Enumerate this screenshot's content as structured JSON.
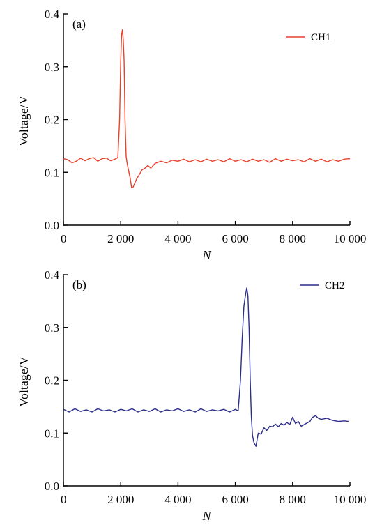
{
  "chart_data": [
    {
      "panel_label": "(a)",
      "type": "line",
      "xlabel": "N",
      "ylabel": "Voltage/V",
      "xlim": [
        0,
        10000
      ],
      "ylim": [
        0.0,
        0.4
      ],
      "xticks": [
        0,
        2000,
        4000,
        6000,
        8000,
        10000
      ],
      "xtick_labels": [
        "0",
        "2 000",
        "4 000",
        "6 000",
        "8 000",
        "10 000"
      ],
      "yticks": [
        0.0,
        0.1,
        0.2,
        0.3,
        0.4
      ],
      "ytick_labels": [
        "0.0",
        "0.1",
        "0.2",
        "0.3",
        "0.4"
      ],
      "legend_position": "top-right",
      "series": [
        {
          "name": "CH1",
          "color": "#e8412c",
          "x": [
            0,
            150,
            300,
            450,
            600,
            750,
            900,
            1050,
            1200,
            1350,
            1500,
            1650,
            1800,
            1900,
            1960,
            2000,
            2030,
            2060,
            2090,
            2120,
            2150,
            2190,
            2230,
            2280,
            2330,
            2380,
            2430,
            2480,
            2550,
            2650,
            2750,
            2850,
            2950,
            3050,
            3200,
            3400,
            3600,
            3800,
            4000,
            4200,
            4400,
            4600,
            4800,
            5000,
            5200,
            5400,
            5600,
            5800,
            6000,
            6200,
            6400,
            6600,
            6800,
            7000,
            7200,
            7400,
            7600,
            7800,
            8000,
            8200,
            8400,
            8600,
            8800,
            9000,
            9200,
            9400,
            9600,
            9800,
            10000
          ],
          "values": [
            0.126,
            0.124,
            0.118,
            0.121,
            0.127,
            0.122,
            0.126,
            0.128,
            0.121,
            0.126,
            0.127,
            0.122,
            0.125,
            0.128,
            0.2,
            0.31,
            0.36,
            0.37,
            0.35,
            0.31,
            0.2,
            0.13,
            0.115,
            0.102,
            0.089,
            0.071,
            0.072,
            0.078,
            0.087,
            0.096,
            0.105,
            0.108,
            0.113,
            0.108,
            0.117,
            0.121,
            0.118,
            0.123,
            0.121,
            0.125,
            0.12,
            0.124,
            0.12,
            0.125,
            0.121,
            0.124,
            0.12,
            0.126,
            0.121,
            0.124,
            0.12,
            0.125,
            0.121,
            0.124,
            0.119,
            0.126,
            0.121,
            0.125,
            0.122,
            0.124,
            0.12,
            0.126,
            0.121,
            0.125,
            0.12,
            0.124,
            0.121,
            0.125,
            0.126
          ]
        }
      ]
    },
    {
      "panel_label": "(b)",
      "type": "line",
      "xlabel": "N",
      "ylabel": "Voltage/V",
      "xlim": [
        0,
        10000
      ],
      "ylim": [
        0.0,
        0.4
      ],
      "xticks": [
        0,
        2000,
        4000,
        6000,
        8000,
        10000
      ],
      "xtick_labels": [
        "0",
        "2 000",
        "4 000",
        "6 000",
        "8 000",
        "10 000"
      ],
      "yticks": [
        0.0,
        0.1,
        0.2,
        0.3,
        0.4
      ],
      "ytick_labels": [
        "0.0",
        "0.1",
        "0.2",
        "0.3",
        "0.4"
      ],
      "legend_position": "top-right",
      "series": [
        {
          "name": "CH2",
          "color": "#2c2c8a",
          "x": [
            0,
            200,
            400,
            600,
            800,
            1000,
            1200,
            1400,
            1600,
            1800,
            2000,
            2200,
            2400,
            2600,
            2800,
            3000,
            3200,
            3400,
            3600,
            3800,
            4000,
            4200,
            4400,
            4600,
            4800,
            5000,
            5200,
            5400,
            5600,
            5800,
            6000,
            6100,
            6180,
            6240,
            6300,
            6350,
            6400,
            6440,
            6480,
            6520,
            6560,
            6600,
            6650,
            6720,
            6800,
            6900,
            7000,
            7100,
            7200,
            7300,
            7400,
            7500,
            7600,
            7700,
            7800,
            7900,
            8000,
            8100,
            8200,
            8300,
            8400,
            8500,
            8600,
            8700,
            8800,
            8900,
            9000,
            9200,
            9400,
            9600,
            9800,
            9950
          ],
          "values": [
            0.145,
            0.14,
            0.146,
            0.141,
            0.144,
            0.14,
            0.146,
            0.142,
            0.144,
            0.14,
            0.145,
            0.142,
            0.146,
            0.14,
            0.144,
            0.141,
            0.146,
            0.14,
            0.144,
            0.142,
            0.146,
            0.141,
            0.144,
            0.14,
            0.146,
            0.141,
            0.144,
            0.142,
            0.145,
            0.14,
            0.145,
            0.142,
            0.2,
            0.28,
            0.34,
            0.36,
            0.375,
            0.36,
            0.3,
            0.2,
            0.13,
            0.095,
            0.082,
            0.075,
            0.1,
            0.098,
            0.11,
            0.105,
            0.113,
            0.112,
            0.117,
            0.112,
            0.118,
            0.115,
            0.12,
            0.116,
            0.13,
            0.118,
            0.122,
            0.113,
            0.116,
            0.119,
            0.122,
            0.13,
            0.133,
            0.128,
            0.126,
            0.128,
            0.124,
            0.122,
            0.123,
            0.122
          ]
        }
      ]
    }
  ]
}
